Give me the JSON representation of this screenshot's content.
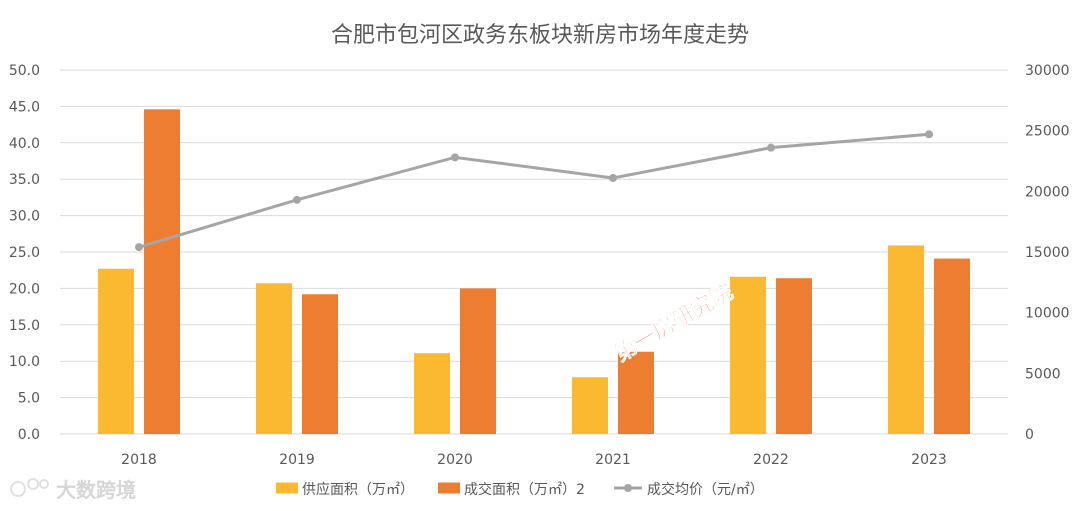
{
  "chart_data": {
    "type": "bar",
    "title": "合肥市包河区政务东板块新房市场年度走势",
    "categories": [
      "2018",
      "2019",
      "2020",
      "2021",
      "2022",
      "2023"
    ],
    "series": [
      {
        "name": "供应面积（万㎡）",
        "type": "bar",
        "axis": "left",
        "color": "#fbb831",
        "values": [
          22.7,
          20.7,
          11.1,
          7.8,
          21.6,
          25.9
        ]
      },
      {
        "name": "成交面积（万㎡）2",
        "type": "bar",
        "axis": "left",
        "color": "#ed7d31",
        "values": [
          44.6,
          19.2,
          20.0,
          11.3,
          21.4,
          24.1
        ]
      },
      {
        "name": "成交均价（元/㎡）",
        "type": "line",
        "axis": "right",
        "color": "#a5a5a5",
        "values": [
          15400,
          19300,
          22800,
          21100,
          23600,
          24700
        ]
      }
    ],
    "y_left": {
      "min": 0,
      "max": 50,
      "ticks": [
        "0.0",
        "5.0",
        "10.0",
        "15.0",
        "20.0",
        "25.0",
        "30.0",
        "35.0",
        "40.0",
        "45.0",
        "50.0"
      ]
    },
    "y_right": {
      "min": 0,
      "max": 30000,
      "ticks": [
        "0",
        "5000",
        "10000",
        "15000",
        "20000",
        "25000",
        "30000"
      ]
    },
    "grid": true,
    "legend_position": "bottom"
  },
  "watermarks": {
    "center": "第一房研究院",
    "corner": "大数跨境"
  }
}
